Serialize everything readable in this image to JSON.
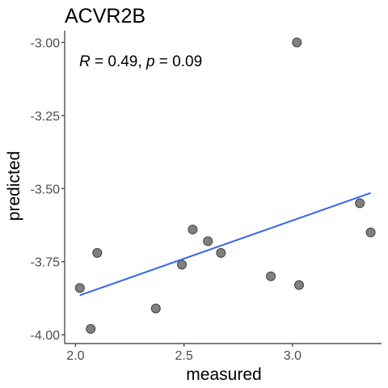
{
  "chart_data": {
    "type": "scatter",
    "title": "ACVR2B",
    "xlabel": "measured",
    "ylabel": "predicted",
    "xlim": [
      1.95,
      3.41
    ],
    "ylim": [
      -4.03,
      -2.96
    ],
    "x_ticks": [
      2.0,
      2.5,
      3.0
    ],
    "x_tick_labels": [
      "2.0",
      "2.5",
      "3.0"
    ],
    "y_ticks": [
      -3.0,
      -3.25,
      -3.5,
      -3.75,
      -4.0
    ],
    "y_tick_labels": [
      "-3.00",
      "-3.25",
      "-3.50",
      "-3.75",
      "-4.00"
    ],
    "grid": false,
    "legend": false,
    "annotation": {
      "r_symbol": "R",
      "r_value": " = 0.49, ",
      "p_symbol": "p",
      "p_value": " = 0.09"
    },
    "points": [
      {
        "x": 2.02,
        "y": -3.84
      },
      {
        "x": 2.07,
        "y": -3.98
      },
      {
        "x": 2.1,
        "y": -3.72
      },
      {
        "x": 2.37,
        "y": -3.91
      },
      {
        "x": 2.49,
        "y": -3.76
      },
      {
        "x": 2.54,
        "y": -3.64
      },
      {
        "x": 2.61,
        "y": -3.68
      },
      {
        "x": 2.67,
        "y": -3.72
      },
      {
        "x": 2.9,
        "y": -3.8
      },
      {
        "x": 3.02,
        "y": -3.0
      },
      {
        "x": 3.03,
        "y": -3.83
      },
      {
        "x": 3.31,
        "y": -3.55
      },
      {
        "x": 3.36,
        "y": -3.65
      }
    ],
    "fit_line": {
      "x": [
        2.02,
        3.36
      ],
      "y": [
        -3.865,
        -3.515
      ]
    },
    "colors": {
      "point_fill": "#808080",
      "point_stroke": "#404040",
      "fit_line": "#3366ee",
      "axis": "#333333"
    }
  }
}
